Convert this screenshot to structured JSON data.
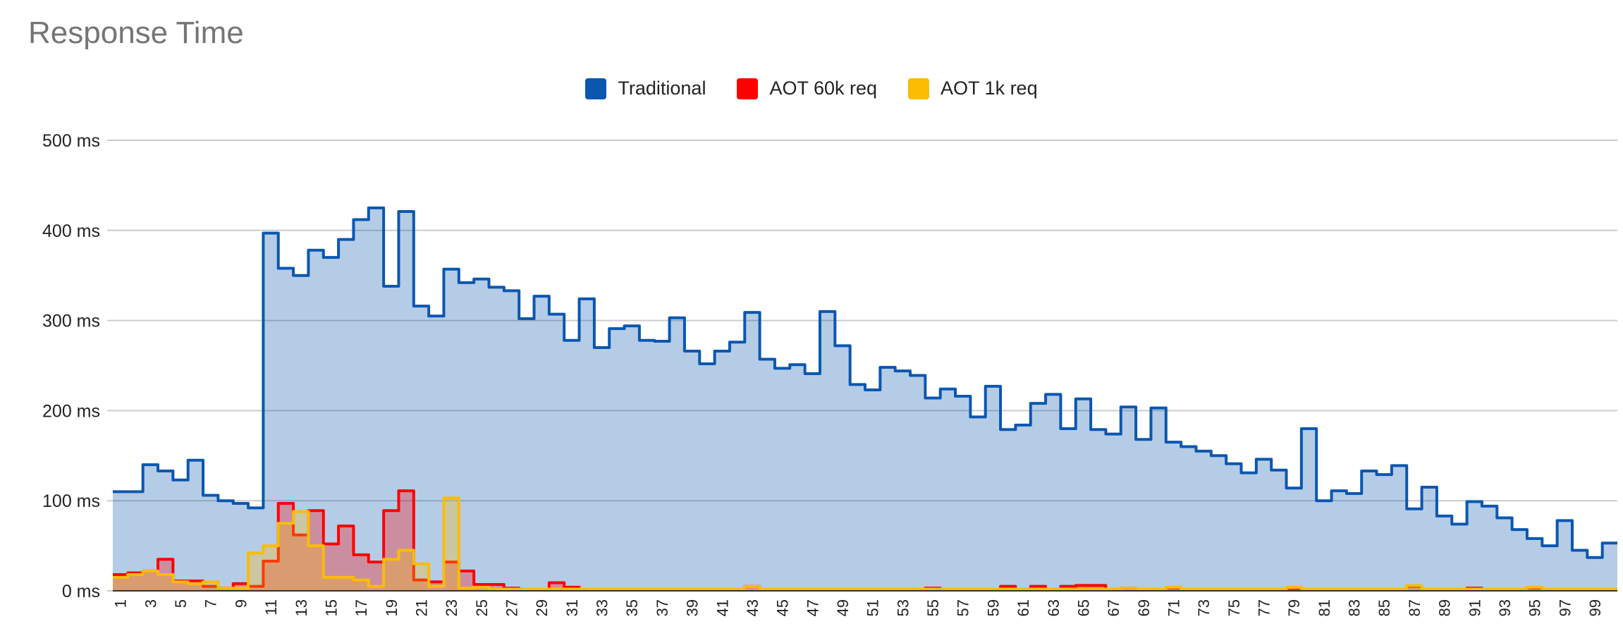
{
  "chart_data": {
    "type": "area",
    "subtype": "stepped",
    "title": "Response Time",
    "legend_position": "top",
    "grid": true,
    "ylim": [
      0,
      500
    ],
    "y_ticks": [
      "0 ms",
      "100 ms",
      "200 ms",
      "300 ms",
      "400 ms",
      "500 ms"
    ],
    "y_tick_values": [
      0,
      100,
      200,
      300,
      400,
      500
    ],
    "x": [
      1,
      2,
      3,
      4,
      5,
      6,
      7,
      8,
      9,
      10,
      11,
      12,
      13,
      14,
      15,
      16,
      17,
      18,
      19,
      20,
      21,
      22,
      23,
      24,
      25,
      26,
      27,
      28,
      29,
      30,
      31,
      32,
      33,
      34,
      35,
      36,
      37,
      38,
      39,
      40,
      41,
      42,
      43,
      44,
      45,
      46,
      47,
      48,
      49,
      50,
      51,
      52,
      53,
      54,
      55,
      56,
      57,
      58,
      59,
      60,
      61,
      62,
      63,
      64,
      65,
      66,
      67,
      68,
      69,
      70,
      71,
      72,
      73,
      74,
      75,
      76,
      77,
      78,
      79,
      80,
      81,
      82,
      83,
      84,
      85,
      86,
      87,
      88,
      89,
      90,
      91,
      92,
      93,
      94,
      95,
      96,
      97,
      98,
      99,
      100
    ],
    "x_tick_labels": [
      "1",
      "3",
      "5",
      "7",
      "9",
      "11",
      "13",
      "15",
      "17",
      "19",
      "21",
      "23",
      "25",
      "27",
      "29",
      "31",
      "33",
      "35",
      "37",
      "39",
      "41",
      "43",
      "45",
      "47",
      "49",
      "51",
      "53",
      "55",
      "57",
      "59",
      "61",
      "63",
      "65",
      "67",
      "69",
      "71",
      "73",
      "75",
      "77",
      "79",
      "81",
      "83",
      "85",
      "87",
      "89",
      "91",
      "93",
      "95",
      "97",
      "99"
    ],
    "series": [
      {
        "name": "Traditional",
        "color": "#0b57b0",
        "values": [
          110,
          110,
          140,
          133,
          123,
          145,
          106,
          100,
          97,
          92,
          397,
          358,
          350,
          378,
          370,
          390,
          412,
          425,
          338,
          421,
          316,
          305,
          357,
          342,
          346,
          337,
          333,
          302,
          327,
          307,
          278,
          324,
          270,
          291,
          294,
          278,
          277,
          303,
          266,
          252,
          266,
          276,
          309,
          257,
          247,
          251,
          241,
          310,
          272,
          229,
          223,
          248,
          244,
          239,
          214,
          224,
          216,
          193,
          227,
          179,
          184,
          208,
          218,
          180,
          213,
          179,
          174,
          204,
          168,
          203,
          165,
          160,
          155,
          150,
          141,
          131,
          146,
          134,
          114,
          180,
          100,
          111,
          108,
          133,
          129,
          139,
          91,
          115,
          83,
          74,
          99,
          94,
          81,
          68,
          58,
          50,
          78,
          45,
          37,
          53
        ]
      },
      {
        "name": "AOT 60k req",
        "color": "#ff0000",
        "values": [
          18,
          20,
          22,
          35,
          11,
          11,
          5,
          3,
          8,
          5,
          33,
          97,
          62,
          89,
          52,
          72,
          40,
          32,
          89,
          111,
          12,
          10,
          32,
          22,
          7,
          7,
          3,
          2,
          1,
          9,
          4,
          2,
          2,
          2,
          2,
          2,
          2,
          2,
          2,
          2,
          2,
          2,
          5,
          2,
          2,
          2,
          2,
          2,
          2,
          2,
          2,
          2,
          2,
          2,
          3,
          2,
          2,
          2,
          2,
          5,
          2,
          5,
          2,
          5,
          6,
          6,
          2,
          3,
          2,
          2,
          3,
          2,
          2,
          2,
          2,
          2,
          2,
          2,
          2,
          2,
          2,
          2,
          2,
          2,
          2,
          2,
          5,
          2,
          2,
          2,
          3,
          2,
          2,
          2,
          3,
          2,
          2,
          2,
          2,
          2
        ]
      },
      {
        "name": "AOT 1k req",
        "color": "#fbbc04",
        "values": [
          15,
          18,
          22,
          18,
          10,
          8,
          10,
          3,
          3,
          42,
          50,
          75,
          88,
          50,
          15,
          15,
          12,
          5,
          35,
          45,
          30,
          5,
          103,
          3,
          4,
          2,
          2,
          2,
          2,
          2,
          2,
          2,
          2,
          2,
          2,
          2,
          2,
          2,
          2,
          2,
          2,
          2,
          5,
          2,
          2,
          2,
          2,
          2,
          2,
          2,
          2,
          2,
          2,
          2,
          2,
          2,
          2,
          2,
          2,
          2,
          2,
          2,
          2,
          2,
          2,
          2,
          2,
          3,
          2,
          2,
          4,
          2,
          2,
          2,
          2,
          2,
          2,
          2,
          4,
          2,
          2,
          2,
          2,
          2,
          2,
          2,
          6,
          2,
          2,
          2,
          2,
          2,
          2,
          2,
          4,
          2,
          2,
          2,
          2,
          2
        ]
      }
    ]
  }
}
